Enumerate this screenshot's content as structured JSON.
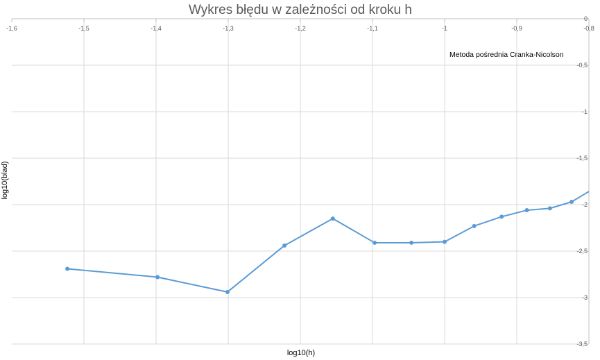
{
  "chart_data": {
    "type": "line",
    "title": "Wykres błędu w zależności od kroku h",
    "xlabel": "log10(h)",
    "ylabel": "log10(blad)",
    "annotation": "Metoda pośrednia Cranka-Nicolson",
    "xlim": [
      -1.6,
      -0.8
    ],
    "ylim": [
      -3.5,
      0
    ],
    "x_ticks": [
      -1.6,
      -1.5,
      -1.4,
      -1.3,
      -1.2,
      -1.1,
      -1,
      -0.9,
      -0.8
    ],
    "x_tick_labels": [
      "-1,6",
      "-1,5",
      "-1,4",
      "-1,3",
      "-1,2",
      "-1,1",
      "-1",
      "-0,9",
      "-0,8"
    ],
    "y_ticks": [
      0,
      -0.5,
      -1,
      -1.5,
      -2,
      -2.5,
      -3,
      -3.5
    ],
    "y_tick_labels": [
      "0",
      "-0,5",
      "-1",
      "-1,5",
      "-2",
      "-2,5",
      "-3",
      "-3,5"
    ],
    "grid": true,
    "series": [
      {
        "color": "#5B9BD5",
        "x": [
          -1.523,
          -1.398,
          -1.301,
          -1.222,
          -1.155,
          -1.097,
          -1.046,
          -1.0,
          -0.959,
          -0.921,
          -0.886,
          -0.854,
          -0.824,
          -0.796
        ],
        "y": [
          -2.69,
          -2.78,
          -2.94,
          -2.44,
          -2.15,
          -2.41,
          -2.41,
          -2.4,
          -2.23,
          -2.13,
          -2.06,
          -2.04,
          -1.97,
          -1.84
        ]
      }
    ]
  }
}
